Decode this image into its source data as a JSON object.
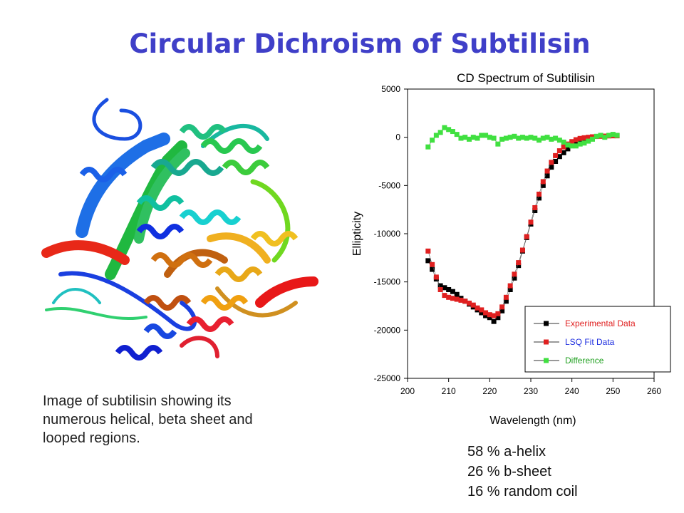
{
  "slide": {
    "title": "Circular Dichroism of Subtilisin",
    "caption_lines": [
      "Image of subtilisin showing its",
      "numerous helical, beta sheet and",
      "looped regions."
    ],
    "stats": [
      "58 % a-helix",
      "26 % b-sheet",
      "16 % random coil"
    ],
    "image_description": "ribbon-structure"
  },
  "chart_data": {
    "type": "scatter",
    "title": "CD Spectrum of Subtilisin",
    "xlabel": "Wavelength (nm)",
    "ylabel": "Ellipticity",
    "xlim": [
      200,
      260
    ],
    "ylim": [
      -25000,
      5000
    ],
    "xticks": [
      200,
      210,
      220,
      230,
      240,
      250,
      260
    ],
    "yticks": [
      5000,
      0,
      -5000,
      -10000,
      -15000,
      -20000,
      -25000
    ],
    "grid": false,
    "legend_position": "bottom-right",
    "series": [
      {
        "name": "Experimental Data",
        "color": "#000000",
        "label_color": "#e02020",
        "x": [
          205,
          206,
          207,
          208,
          209,
          210,
          211,
          212,
          213,
          214,
          215,
          216,
          217,
          218,
          219,
          220,
          221,
          222,
          223,
          224,
          225,
          226,
          227,
          228,
          229,
          230,
          231,
          232,
          233,
          234,
          235,
          236,
          237,
          238,
          239,
          240,
          241,
          242,
          243
        ],
        "y": [
          -12800,
          -13700,
          -14700,
          -15400,
          -15600,
          -15800,
          -16000,
          -16300,
          -16700,
          -17000,
          -17300,
          -17600,
          -17900,
          -18200,
          -18500,
          -18700,
          -19100,
          -18700,
          -18000,
          -17000,
          -15800,
          -14600,
          -13300,
          -11800,
          -10400,
          -9000,
          -7600,
          -6300,
          -5000,
          -4000,
          -3100,
          -2500,
          -2000,
          -1600,
          -1200,
          -800,
          -400,
          -200,
          -100
        ]
      },
      {
        "name": "LSQ Fit Data",
        "color": "#e02020",
        "label_color": "#2030e0",
        "x": [
          205,
          206,
          207,
          208,
          209,
          210,
          211,
          212,
          213,
          214,
          215,
          216,
          217,
          218,
          219,
          220,
          221,
          222,
          223,
          224,
          225,
          226,
          227,
          228,
          229,
          230,
          231,
          232,
          233,
          234,
          235,
          236,
          237,
          238,
          239,
          240,
          241,
          242,
          243,
          244,
          245,
          246,
          247,
          248,
          249,
          250,
          251
        ],
        "y": [
          -11800,
          -13200,
          -14500,
          -15800,
          -16400,
          -16600,
          -16700,
          -16800,
          -16900,
          -17000,
          -17200,
          -17400,
          -17700,
          -17900,
          -18200,
          -18400,
          -18500,
          -18300,
          -17600,
          -16600,
          -15400,
          -14200,
          -13000,
          -11700,
          -10300,
          -8800,
          -7300,
          -5900,
          -4600,
          -3500,
          -2600,
          -1900,
          -1400,
          -1000,
          -700,
          -450,
          -250,
          -120,
          -50,
          0,
          50,
          80,
          100,
          120,
          140,
          150,
          150
        ]
      },
      {
        "name": "Difference",
        "color": "#40e040",
        "label_color": "#20a020",
        "x": [
          205,
          206,
          207,
          208,
          209,
          210,
          211,
          212,
          213,
          214,
          215,
          216,
          217,
          218,
          219,
          220,
          221,
          222,
          223,
          224,
          225,
          226,
          227,
          228,
          229,
          230,
          231,
          232,
          233,
          234,
          235,
          236,
          237,
          238,
          239,
          240,
          241,
          242,
          243,
          244,
          245,
          246,
          247,
          248,
          249,
          250,
          251
        ],
        "y": [
          -1000,
          -300,
          200,
          500,
          1000,
          800,
          600,
          300,
          -100,
          0,
          -200,
          0,
          -100,
          200,
          200,
          0,
          -100,
          -700,
          -200,
          -100,
          0,
          100,
          -100,
          0,
          -100,
          0,
          -100,
          -300,
          -100,
          0,
          -200,
          -100,
          -300,
          -500,
          -800,
          -900,
          -900,
          -700,
          -600,
          -400,
          -200,
          100,
          200,
          0,
          200,
          300,
          200
        ]
      }
    ]
  }
}
